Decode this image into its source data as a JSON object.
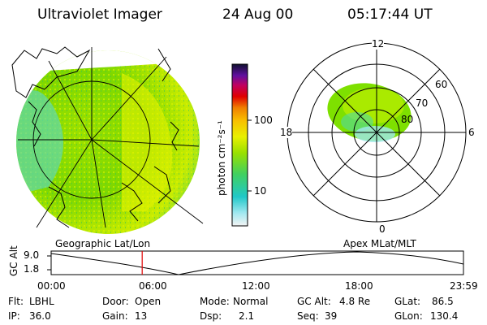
{
  "header": {
    "title": "Ultraviolet Imager",
    "date": "24 Aug 00",
    "time": "05:17:44 UT"
  },
  "colorbar": {
    "unit_label": "photon cm⁻²s⁻¹",
    "ticks": [
      "100",
      "10"
    ]
  },
  "panels": {
    "left_label": "Geographic Lat/Lon",
    "right_label": "Apex MLat/MLT",
    "polar": {
      "clock_labels": {
        "top": "12",
        "left": "18",
        "right": "6",
        "bottom": "0"
      },
      "lat_labels": [
        "60",
        "70",
        "80"
      ]
    }
  },
  "timeline": {
    "axis_label": "GC Alt",
    "y_ticks": [
      "9.0",
      "1.8"
    ],
    "x_ticks": [
      "00:00",
      "06:00",
      "12:00",
      "18:00",
      "23:59"
    ],
    "marker_time_hours": 5.3
  },
  "info": {
    "row1": [
      {
        "label": "Flt:",
        "value": "LBHL"
      },
      {
        "label": "Door:",
        "value": "Open"
      },
      {
        "label": "Mode:",
        "value": "Normal"
      },
      {
        "label": "GC Alt:",
        "value": "4.8 Re"
      },
      {
        "label": "GLat:",
        "value": "86.5"
      }
    ],
    "row2": [
      {
        "label": "IP:",
        "value": "36.0"
      },
      {
        "label": "Gain:",
        "value": "13"
      },
      {
        "label": "Dsp:",
        "value": "2.1"
      },
      {
        "label": "Seq:",
        "value": "39"
      },
      {
        "label": "GLon:",
        "value": "130.4"
      }
    ]
  },
  "colors": {
    "marker": "#e00000",
    "aurora_green": "#7ee000",
    "aurora_yellow": "#d8f000"
  }
}
